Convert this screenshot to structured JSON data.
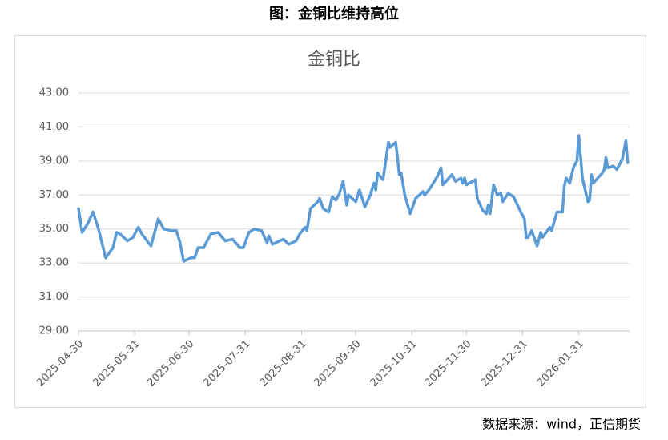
{
  "title": "图：金铜比维持高位",
  "source": "数据来源：wind，正信期货",
  "chart_data": {
    "type": "line",
    "title": "金铜比",
    "x": [
      "2025-04-30",
      "2025-05-02",
      "2025-05-05",
      "2025-05-08",
      "2025-05-11",
      "2025-05-15",
      "2025-05-19",
      "2025-05-21",
      "2025-05-23",
      "2025-05-27",
      "2025-05-30",
      "2025-06-02",
      "2025-06-04",
      "2025-06-09",
      "2025-06-13",
      "2025-06-16",
      "2025-06-20",
      "2025-06-23",
      "2025-06-25",
      "2025-06-27",
      "2025-07-01",
      "2025-07-03",
      "2025-07-05",
      "2025-07-08",
      "2025-07-12",
      "2025-07-16",
      "2025-07-20",
      "2025-07-24",
      "2025-07-28",
      "2025-07-30",
      "2025-08-02",
      "2025-08-05",
      "2025-08-09",
      "2025-08-12",
      "2025-08-13",
      "2025-08-15",
      "2025-08-21",
      "2025-08-24",
      "2025-08-28",
      "2025-08-30",
      "2025-09-02",
      "2025-09-03",
      "2025-09-05",
      "2025-09-09",
      "2025-09-10",
      "2025-09-12",
      "2025-09-15",
      "2025-09-17",
      "2025-09-19",
      "2025-09-21",
      "2025-09-23",
      "2025-09-25",
      "2025-09-26",
      "2025-09-30",
      "2025-10-02",
      "2025-10-05",
      "2025-10-08",
      "2025-10-10",
      "2025-10-11",
      "2025-10-12",
      "2025-10-15",
      "2025-10-18",
      "2025-10-19",
      "2025-10-22",
      "2025-10-24",
      "2025-10-25",
      "2025-10-27",
      "2025-10-30",
      "2025-11-02",
      "2025-11-06",
      "2025-11-07",
      "2025-11-10",
      "2025-11-14",
      "2025-11-16",
      "2025-11-17",
      "2025-11-22",
      "2025-11-24",
      "2025-11-27",
      "2025-11-28",
      "2025-11-29",
      "2025-11-30",
      "2025-12-05",
      "2025-12-06",
      "2025-12-09",
      "2025-12-11",
      "2025-12-12",
      "2025-12-13",
      "2025-12-15",
      "2025-12-17",
      "2025-12-19",
      "2025-12-20",
      "2025-12-23",
      "2025-12-26",
      "2025-12-30",
      "2026-01-01",
      "2026-01-02",
      "2026-01-03",
      "2026-01-05",
      "2026-01-08",
      "2026-01-10",
      "2026-01-11",
      "2026-01-15",
      "2026-01-16",
      "2026-01-19",
      "2026-01-22",
      "2026-01-23",
      "2026-01-24",
      "2026-01-26",
      "2026-01-28",
      "2026-01-30",
      "2026-01-31",
      "2026-02-02",
      "2026-02-05",
      "2026-02-06",
      "2026-02-07",
      "2026-02-08",
      "2026-02-13",
      "2026-02-14",
      "2026-02-15",
      "2026-02-16",
      "2026-02-19",
      "2026-02-21",
      "2026-02-24",
      "2026-02-26",
      "2026-02-27"
    ],
    "series": [
      {
        "name": "金铜比",
        "color": "#5b9bd5",
        "values": [
          36.2,
          34.8,
          35.3,
          36.0,
          35.0,
          33.3,
          33.9,
          34.8,
          34.7,
          34.3,
          34.5,
          35.1,
          34.7,
          34.0,
          35.6,
          35.0,
          34.9,
          34.9,
          34.2,
          33.1,
          33.3,
          33.3,
          33.9,
          33.9,
          34.7,
          34.8,
          34.3,
          34.4,
          33.9,
          33.9,
          34.8,
          35.0,
          34.9,
          34.2,
          34.6,
          34.1,
          34.4,
          34.1,
          34.3,
          34.7,
          35.1,
          34.9,
          36.2,
          36.6,
          36.8,
          36.2,
          36.0,
          36.9,
          36.7,
          37.1,
          37.8,
          36.4,
          37.0,
          36.6,
          37.3,
          36.3,
          37.0,
          37.7,
          37.3,
          38.3,
          37.9,
          40.1,
          39.8,
          40.1,
          38.2,
          38.3,
          37.0,
          35.9,
          36.8,
          37.2,
          37.0,
          37.4,
          38.1,
          38.6,
          37.6,
          38.2,
          37.8,
          38.0,
          37.7,
          38.0,
          37.6,
          37.9,
          36.8,
          36.1,
          35.9,
          36.4,
          35.9,
          37.6,
          37.0,
          37.1,
          36.6,
          37.1,
          36.9,
          36.0,
          35.6,
          34.5,
          34.5,
          34.9,
          34.0,
          34.8,
          34.5,
          35.1,
          34.9,
          36.0,
          36.0,
          37.5,
          38.0,
          37.7,
          38.6,
          39.0,
          40.5,
          38.0,
          36.6,
          36.7,
          38.2,
          37.7,
          38.3,
          38.5,
          39.2,
          38.6,
          38.7,
          38.5,
          39.1,
          40.2,
          38.9
        ]
      }
    ],
    "xlim": [
      "2025-04-30",
      "2026-02-28"
    ],
    "xticks": [
      "2025-04-30",
      "2025-05-31",
      "2025-06-30",
      "2025-07-31",
      "2025-08-31",
      "2025-09-30",
      "2025-10-31",
      "2025-11-30",
      "2025-12-31",
      "2026-01-31"
    ],
    "ylim": [
      29,
      43
    ],
    "yticks": [
      {
        "value": 29,
        "label": "29.00"
      },
      {
        "value": 31,
        "label": "31.00"
      },
      {
        "value": 33,
        "label": "33.00"
      },
      {
        "value": 35,
        "label": "35.00"
      },
      {
        "value": 37,
        "label": "37.00"
      },
      {
        "value": 39,
        "label": "39.00"
      },
      {
        "value": 41,
        "label": "41.00"
      },
      {
        "value": 43,
        "label": "43.00"
      }
    ],
    "grid": true
  }
}
